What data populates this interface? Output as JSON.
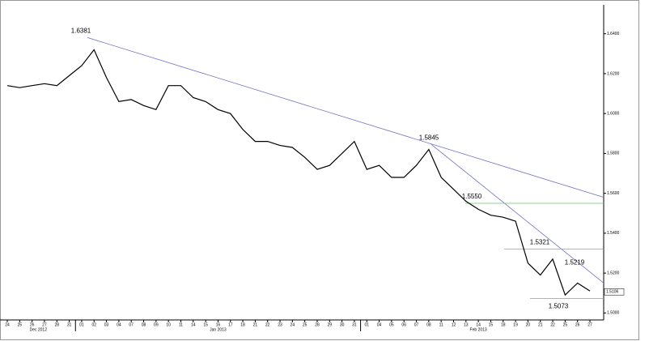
{
  "chart_data": {
    "type": "line",
    "categories": [
      "24",
      "25",
      "26",
      "27",
      "28",
      "31",
      "01",
      "02",
      "03",
      "04",
      "07",
      "08",
      "09",
      "10",
      "11",
      "14",
      "15",
      "16",
      "17",
      "18",
      "21",
      "22",
      "23",
      "24",
      "25",
      "28",
      "29",
      "30",
      "31",
      "01",
      "04",
      "05",
      "06",
      "07",
      "08",
      "11",
      "12",
      "13",
      "14",
      "15",
      "18",
      "19",
      "20",
      "21",
      "22",
      "25",
      "26",
      "27"
    ],
    "months": [
      "Dec 2012",
      "Jan 2013",
      "Feb 2013"
    ],
    "series": [
      {
        "color": "#000000",
        "values": [
          1.614,
          1.613,
          1.614,
          1.615,
          1.614,
          1.619,
          1.624,
          1.632,
          1.618,
          1.606,
          1.607,
          1.604,
          1.602,
          1.614,
          1.614,
          1.608,
          1.606,
          1.602,
          1.6,
          1.592,
          1.586,
          1.586,
          1.584,
          1.583,
          1.578,
          1.572,
          1.574,
          1.58,
          1.586,
          1.572,
          1.574,
          1.568,
          1.568,
          1.574,
          1.582,
          1.568,
          1.562,
          1.556,
          1.552,
          1.549,
          1.548,
          1.546,
          1.525,
          1.519,
          1.527,
          1.509,
          1.515,
          1.511
        ]
      }
    ],
    "ylim": [
      1.4965,
      1.6545
    ],
    "yticks": [
      {
        "value": 1.5,
        "label": "1.5000"
      },
      {
        "value": 1.52,
        "label": "1.5200"
      },
      {
        "value": 1.54,
        "label": "1.5400"
      },
      {
        "value": 1.56,
        "label": "1.5600"
      },
      {
        "value": 1.58,
        "label": "1.5800"
      },
      {
        "value": 1.6,
        "label": "1.6000"
      },
      {
        "value": 1.62,
        "label": "1.6200"
      },
      {
        "value": 1.64,
        "label": "1.6400"
      }
    ],
    "annotations": [
      {
        "value": 1.6381,
        "label": "1.6381"
      },
      {
        "value": 1.5845,
        "label": "1.5845"
      },
      {
        "value": 1.555,
        "label": "1.5550"
      },
      {
        "value": 1.5321,
        "label": "1.5321"
      },
      {
        "value": 1.5219,
        "label": "1.5219"
      },
      {
        "value": 1.5073,
        "label": "1.5073"
      }
    ],
    "trendlines": [
      {
        "color": "#7070c8",
        "values": [
          1.6381,
          1.558
        ]
      },
      {
        "color": "#7070c8",
        "values": [
          1.5845,
          1.515
        ]
      }
    ],
    "last_price": 1.5106
  }
}
